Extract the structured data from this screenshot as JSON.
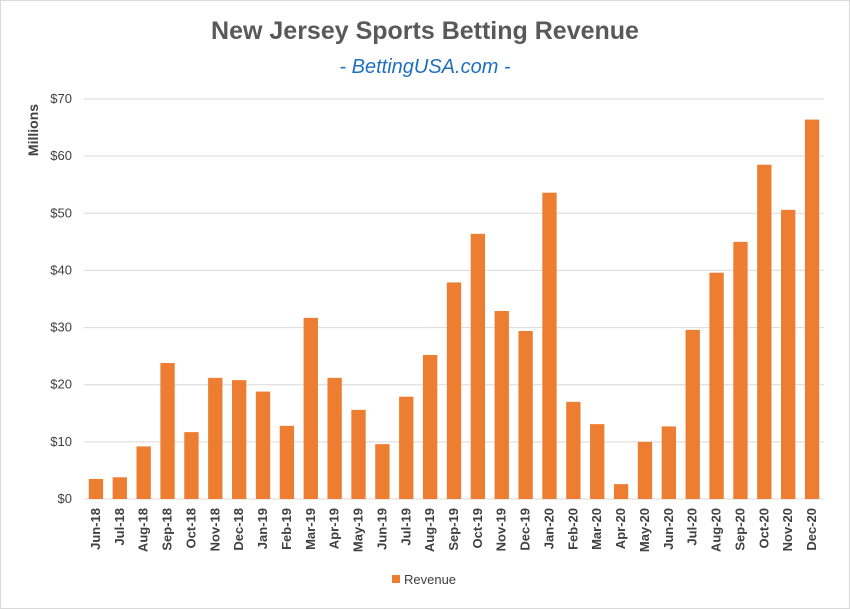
{
  "colors": {
    "bar": "#ed7d31",
    "grid": "#d9d9d9",
    "title": "#595959",
    "subtitle": "#1f6fbf"
  },
  "chart_data": {
    "type": "bar",
    "title": "New Jersey Sports Betting Revenue",
    "subtitle": "- BettingUSA.com -",
    "xlabel": "",
    "ylabel": "Millions",
    "ylim": [
      0,
      70
    ],
    "yticks": [
      0,
      10,
      20,
      30,
      40,
      50,
      60,
      70
    ],
    "ytick_labels": [
      "$0",
      "$10",
      "$20",
      "$30",
      "$40",
      "$50",
      "$60",
      "$70"
    ],
    "grid": true,
    "legend_position": "bottom",
    "categories": [
      "Jun-18",
      "Jul-18",
      "Aug-18",
      "Sep-18",
      "Oct-18",
      "Nov-18",
      "Dec-18",
      "Jan-19",
      "Feb-19",
      "Mar-19",
      "Apr-19",
      "May-19",
      "Jun-19",
      "Jul-19",
      "Aug-19",
      "Sep-19",
      "Oct-19",
      "Nov-19",
      "Dec-19",
      "Jan-20",
      "Feb-20",
      "Mar-20",
      "Apr-20",
      "May-20",
      "Jun-20",
      "Jul-20",
      "Aug-20",
      "Sep-20",
      "Oct-20",
      "Nov-20",
      "Dec-20"
    ],
    "series": [
      {
        "name": "Revenue",
        "values": [
          3.5,
          3.8,
          9.2,
          23.8,
          11.7,
          21.2,
          20.8,
          18.8,
          12.8,
          31.7,
          21.2,
          15.6,
          9.6,
          17.9,
          25.2,
          37.9,
          46.4,
          32.9,
          29.4,
          53.6,
          17.0,
          13.1,
          2.6,
          10.0,
          12.7,
          29.6,
          39.6,
          45.0,
          58.5,
          50.6,
          66.4
        ]
      }
    ]
  }
}
